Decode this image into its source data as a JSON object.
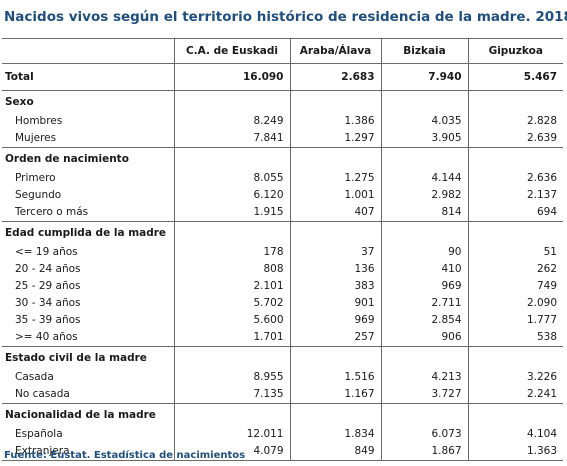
{
  "title": "Nacidos vivos según el territorio histórico de residencia de la madre. 2018",
  "columns": [
    "C.A. de Euskadi",
    "Araba/Álava",
    "Bizkaia",
    "Gipuzkoa"
  ],
  "total": {
    "label": "Total",
    "values": [
      "16.090",
      "2.683",
      "7.940",
      "5.467"
    ]
  },
  "sections": [
    {
      "header": "Sexo",
      "rows": [
        {
          "label": "Hombres",
          "values": [
            "8.249",
            "1.386",
            "4.035",
            "2.828"
          ]
        },
        {
          "label": "Mujeres",
          "values": [
            "7.841",
            "1.297",
            "3.905",
            "2.639"
          ]
        }
      ]
    },
    {
      "header": "Orden de nacimiento",
      "rows": [
        {
          "label": "Primero",
          "values": [
            "8.055",
            "1.275",
            "4.144",
            "2.636"
          ]
        },
        {
          "label": "Segundo",
          "values": [
            "6.120",
            "1.001",
            "2.982",
            "2.137"
          ]
        },
        {
          "label": "Tercero o más",
          "values": [
            "1.915",
            "407",
            "814",
            "694"
          ]
        }
      ]
    },
    {
      "header": "Edad cumplida de la madre",
      "rows": [
        {
          "label": "<= 19 años",
          "values": [
            "178",
            "37",
            "90",
            "51"
          ]
        },
        {
          "label": "20 - 24 años",
          "values": [
            "808",
            "136",
            "410",
            "262"
          ]
        },
        {
          "label": "25 - 29 años",
          "values": [
            "2.101",
            "383",
            "969",
            "749"
          ]
        },
        {
          "label": "30 - 34 años",
          "values": [
            "5.702",
            "901",
            "2.711",
            "2.090"
          ]
        },
        {
          "label": "35 - 39 años",
          "values": [
            "5.600",
            "969",
            "2.854",
            "1.777"
          ]
        },
        {
          "label": ">= 40 años",
          "values": [
            "1.701",
            "257",
            "906",
            "538"
          ]
        }
      ]
    },
    {
      "header": "Estado civil de la madre",
      "rows": [
        {
          "label": "Casada",
          "values": [
            "8.955",
            "1.516",
            "4.213",
            "3.226"
          ]
        },
        {
          "label": "No casada",
          "values": [
            "7.135",
            "1.167",
            "3.727",
            "2.241"
          ]
        }
      ]
    },
    {
      "header": "Nacionalidad de la madre",
      "rows": [
        {
          "label": "Española",
          "values": [
            "12.011",
            "1.834",
            "6.073",
            "4.104"
          ]
        },
        {
          "label": "Extranjera",
          "values": [
            "4.079",
            "849",
            "1.867",
            "1.363"
          ]
        }
      ]
    }
  ],
  "source": "Fuente: Eustat. Estadística de nacimientos",
  "colors": {
    "title": "#1f4f7a",
    "rules": "#6a6a6a"
  }
}
